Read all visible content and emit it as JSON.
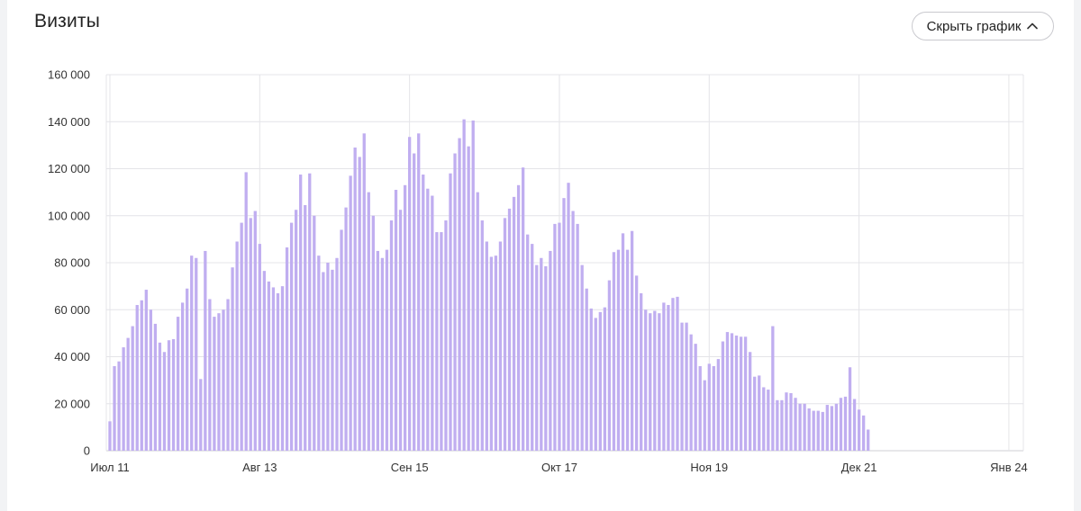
{
  "header": {
    "title": "Визиты",
    "toggle_label": "Скрыть график",
    "toggle_icon": "chevron-up-icon"
  },
  "colors": {
    "bar": "#c0aef0",
    "grid": "#e4e4e8",
    "axis": "#cfcfd4",
    "text": "#333333"
  },
  "chart_data": {
    "type": "bar",
    "title": "Визиты",
    "xlabel": "",
    "ylabel": "",
    "ylim": [
      0,
      160000
    ],
    "grid": true,
    "y_ticks": [
      "0",
      "20 000",
      "40 000",
      "60 000",
      "80 000",
      "100 000",
      "120 000",
      "140 000",
      "160 000"
    ],
    "x_ticks": [
      "Июл 11",
      "Авг 13",
      "Сен 15",
      "Окт 17",
      "Ноя 19",
      "Дек 21",
      "Янв 24"
    ],
    "x_tick_days": [
      0,
      33,
      66,
      99,
      132,
      165,
      198
    ],
    "values": [
      12500,
      36000,
      38000,
      44000,
      48000,
      53000,
      62000,
      64000,
      68500,
      60000,
      54000,
      46000,
      42000,
      47000,
      47500,
      57000,
      63000,
      69000,
      83000,
      82000,
      30500,
      85000,
      64500,
      57000,
      58500,
      60000,
      64500,
      78000,
      89000,
      97000,
      118500,
      99000,
      102000,
      88000,
      76500,
      72000,
      69500,
      67000,
      70000,
      86500,
      97000,
      102500,
      117500,
      104500,
      118000,
      100000,
      83000,
      76000,
      80000,
      77000,
      82000,
      94000,
      103500,
      117000,
      129000,
      125000,
      135000,
      110000,
      100000,
      85000,
      82000,
      85500,
      98000,
      111000,
      102500,
      113000,
      133500,
      126500,
      135000,
      117500,
      111500,
      108500,
      93000,
      93000,
      98000,
      118000,
      126500,
      133000,
      141000,
      129500,
      140500,
      110000,
      98000,
      89000,
      82500,
      83000,
      89000,
      99000,
      103000,
      108000,
      113000,
      120500,
      92000,
      88000,
      79000,
      82000,
      78500,
      85000,
      96500,
      97000,
      107500,
      114000,
      102000,
      96500,
      79000,
      69000,
      60500,
      56500,
      59000,
      61000,
      72500,
      84500,
      85500,
      92500,
      85500,
      93500,
      74500,
      67000,
      60000,
      58500,
      59500,
      58500,
      63000,
      62000,
      65000,
      65500,
      54500,
      54500,
      49500,
      45500,
      36000,
      30000,
      37000,
      36000,
      39000,
      46500,
      50500,
      50000,
      49000,
      48500,
      48500,
      42000,
      31500,
      32000,
      27000,
      26000,
      53000,
      21500,
      21500,
      24800,
      24500,
      22500,
      20000,
      20000,
      18000,
      17000,
      17000,
      16500,
      19500,
      19000,
      20000,
      22500,
      23000,
      35500,
      22000,
      17500,
      15000,
      9000
    ]
  }
}
